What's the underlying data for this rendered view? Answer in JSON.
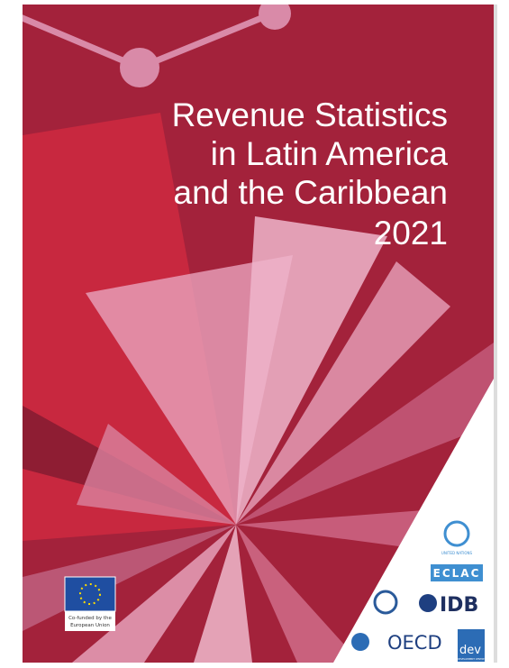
{
  "title": [
    "Revenue Statistics",
    "in Latin America",
    "and the Caribbean",
    "2021"
  ],
  "eu_label": [
    "Co-funded by the",
    "European Union"
  ],
  "logos": {
    "un": "UNITED NATIONS",
    "eclac": "ECLAC",
    "idb": "IDB",
    "oecd": "OECD",
    "dev": "dev",
    "dev_sub": "DEVELOPMENT CENTRE"
  }
}
